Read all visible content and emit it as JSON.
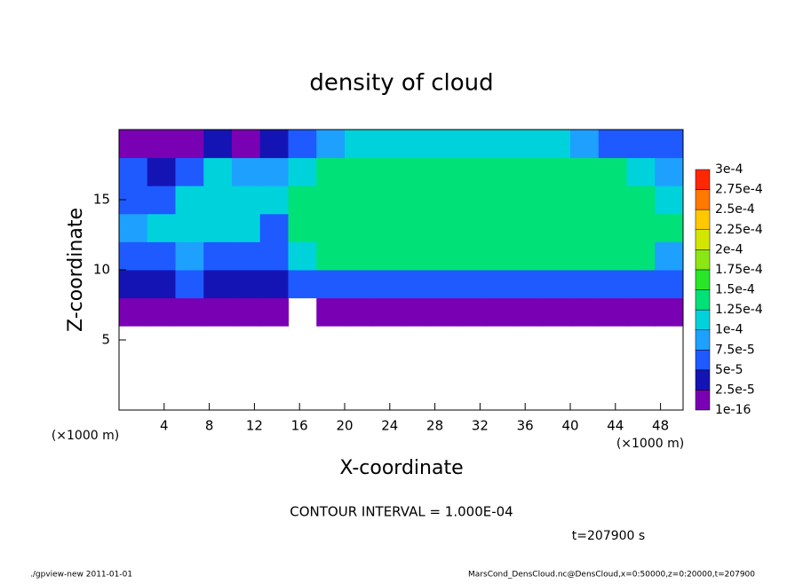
{
  "chart_data": {
    "type": "heatmap",
    "title": "density of cloud",
    "x_label": "X-coordinate",
    "y_label": "Z-coordinate",
    "x_unit": "(×1000 m)",
    "y_unit": "(×1000 m)",
    "xlim": [
      0,
      50
    ],
    "ylim": [
      0,
      20
    ],
    "xticks": [
      4,
      8,
      12,
      16,
      20,
      24,
      28,
      32,
      36,
      40,
      44,
      48
    ],
    "yticks": [
      5,
      10,
      15
    ],
    "x": [
      1.25,
      3.75,
      6.25,
      8.75,
      11.25,
      13.75,
      16.25,
      18.75,
      21.25,
      23.75,
      26.25,
      28.75,
      31.25,
      33.75,
      36.25,
      38.75,
      41.25,
      43.75,
      46.25,
      48.75
    ],
    "z": [
      1,
      3,
      5,
      7,
      9,
      11,
      13,
      15,
      17,
      19
    ],
    "values": [
      [
        null,
        null,
        null,
        null,
        null,
        null,
        null,
        null,
        null,
        null,
        null,
        null,
        null,
        null,
        null,
        null,
        null,
        null,
        null,
        null
      ],
      [
        null,
        null,
        null,
        null,
        null,
        null,
        null,
        null,
        null,
        null,
        null,
        null,
        null,
        null,
        null,
        null,
        null,
        null,
        null,
        null
      ],
      [
        null,
        null,
        null,
        null,
        null,
        null,
        null,
        null,
        null,
        null,
        null,
        null,
        null,
        null,
        null,
        null,
        null,
        null,
        null,
        null
      ],
      [
        1e-05,
        1e-05,
        1e-05,
        1e-05,
        1e-05,
        1e-05,
        null,
        1.5e-05,
        1.5e-05,
        1.5e-05,
        1.5e-05,
        1.5e-05,
        1.5e-05,
        1.5e-05,
        1.5e-05,
        1.5e-05,
        1.5e-05,
        1.5e-05,
        1.5e-05,
        1e-05
      ],
      [
        4e-05,
        3e-05,
        5e-05,
        4e-05,
        3e-05,
        4e-05,
        5e-05,
        6e-05,
        6e-05,
        6e-05,
        6e-05,
        6e-05,
        6e-05,
        6e-05,
        6e-05,
        6e-05,
        6e-05,
        6e-05,
        6e-05,
        5e-05
      ],
      [
        7e-05,
        6e-05,
        8e-05,
        7e-05,
        6e-05,
        5e-05,
        0.00011,
        0.00013,
        0.000135,
        0.000135,
        0.000135,
        0.000135,
        0.000135,
        0.000135,
        0.000135,
        0.000135,
        0.000135,
        0.000135,
        0.00013,
        9e-05
      ],
      [
        8e-05,
        0.00011,
        0.00012,
        0.00011,
        0.000105,
        6e-05,
        0.000135,
        0.000145,
        0.000145,
        0.000145,
        0.000145,
        0.000145,
        0.000145,
        0.000145,
        0.000145,
        0.000145,
        0.000145,
        0.000145,
        0.00014,
        0.000135
      ],
      [
        6e-05,
        5e-05,
        0.000105,
        0.00012,
        0.00011,
        0.000115,
        0.00013,
        0.000145,
        0.000145,
        0.000145,
        0.000145,
        0.000145,
        0.000145,
        0.000145,
        0.000145,
        0.000145,
        0.000145,
        0.000145,
        0.00014,
        0.00012
      ],
      [
        5e-05,
        4e-05,
        6e-05,
        0.000105,
        8e-05,
        9e-05,
        0.00011,
        0.00014,
        0.00014,
        0.00014,
        0.00014,
        0.00014,
        0.00014,
        0.00014,
        0.00014,
        0.00014,
        0.00014,
        0.000135,
        0.0001,
        8e-05
      ],
      [
        2e-05,
        1.5e-05,
        2e-05,
        3e-05,
        2e-05,
        4e-05,
        6e-05,
        9e-05,
        0.000115,
        0.00012,
        0.00012,
        0.00012,
        0.00012,
        0.00012,
        0.00012,
        0.00011,
        9e-05,
        7e-05,
        6e-05,
        6e-05
      ]
    ],
    "colorbar": {
      "levels": [
        {
          "value": 1e-16,
          "label": "1e-16"
        },
        {
          "value": 2.5e-05,
          "label": "2.5e-5"
        },
        {
          "value": 5e-05,
          "label": "5e-5"
        },
        {
          "value": 7.5e-05,
          "label": "7.5e-5"
        },
        {
          "value": 0.0001,
          "label": "1e-4"
        },
        {
          "value": 0.000125,
          "label": "1.25e-4"
        },
        {
          "value": 0.00015,
          "label": "1.5e-4"
        },
        {
          "value": 0.000175,
          "label": "1.75e-4"
        },
        {
          "value": 0.0002,
          "label": "2e-4"
        },
        {
          "value": 0.000225,
          "label": "2.25e-4"
        },
        {
          "value": 0.00025,
          "label": "2.5e-4"
        },
        {
          "value": 0.000275,
          "label": "2.75e-4"
        },
        {
          "value": 0.0003,
          "label": "3e-4"
        }
      ],
      "colors": [
        "#7a00b4",
        "#1414b4",
        "#1e5aff",
        "#1ea0ff",
        "#00d2dc",
        "#00e178",
        "#28e628",
        "#8ce614",
        "#d2e600",
        "#ffc800",
        "#ff7800",
        "#ff2800"
      ]
    },
    "contour_text": "CONTOUR INTERVAL = 1.000E-04",
    "time_text": "t=207900 s",
    "footer_left": "./gpview-new  2011-01-01",
    "footer_right": "MarsCond_DensCloud.nc@DensCloud,x=0:50000,z=0:20000,t=207900"
  }
}
